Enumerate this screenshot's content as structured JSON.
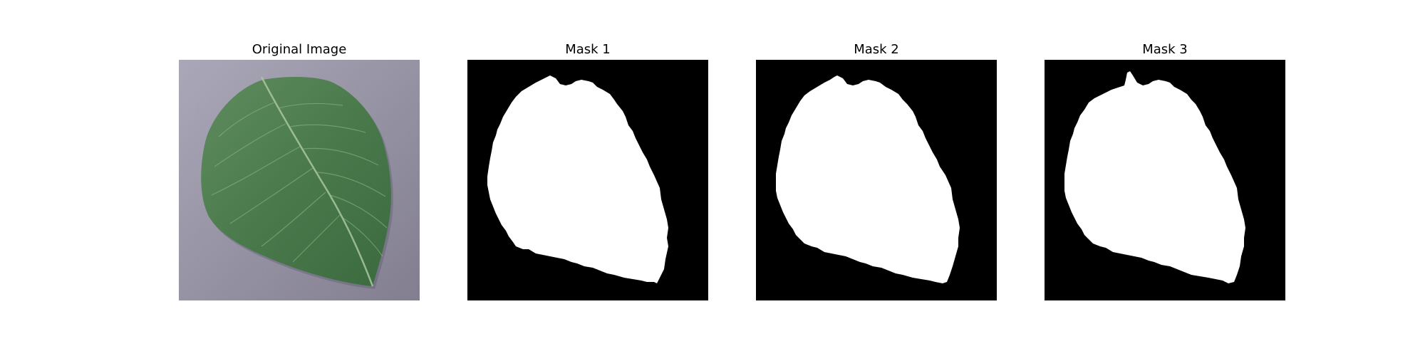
{
  "figure": {
    "panels": [
      {
        "title": "Original Image",
        "kind": "photo",
        "subject": "leaf-photo"
      },
      {
        "title": "Mask 1",
        "kind": "mask",
        "subject": "leaf-mask"
      },
      {
        "title": "Mask 2",
        "kind": "mask",
        "subject": "leaf-mask"
      },
      {
        "title": "Mask 3",
        "kind": "mask",
        "subject": "leaf-mask"
      }
    ]
  },
  "colors": {
    "background": "#ffffff",
    "mask_background": "#000000",
    "mask_foreground": "#ffffff",
    "photo_surface": "#8e8a9a",
    "leaf_green": "#4f7a4f",
    "leaf_vein": "#9cbc92"
  }
}
